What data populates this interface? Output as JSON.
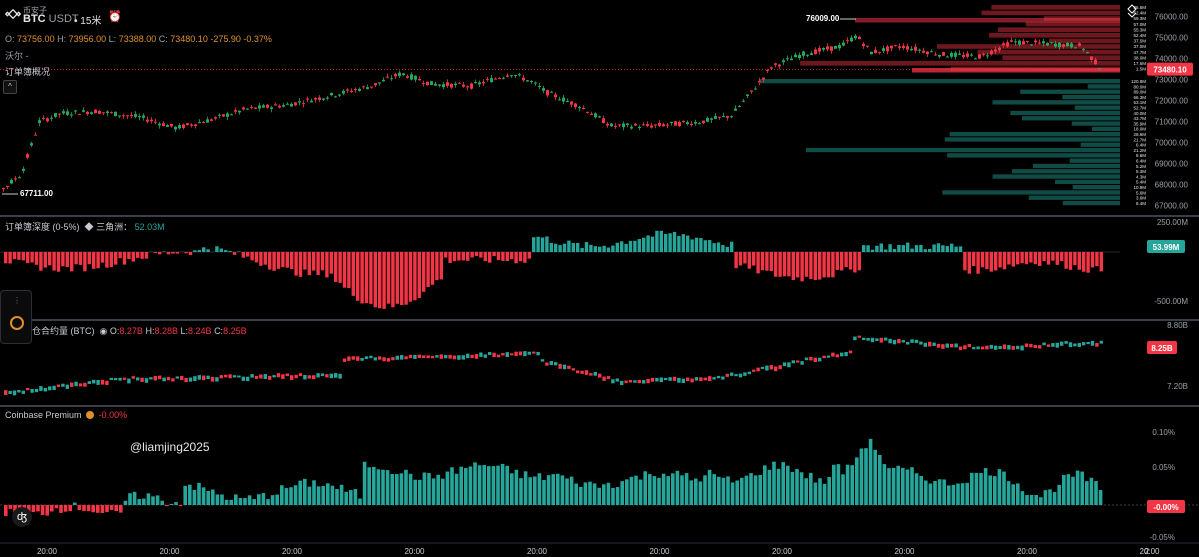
{
  "header": {
    "exchange": "币安子",
    "symbol": "BTC",
    "quote": "USDT",
    "timeframe": "• 15米",
    "alert_icon": "alarm-icon"
  },
  "ohlc": {
    "o_label": "O:",
    "o": "73756.00",
    "h_label": "H:",
    "h": "73956.00",
    "l_label": "L:",
    "l": "73388.00",
    "c_label": "C:",
    "c": "73480.10",
    "change": "-275.90",
    "change_pct": "-0.37%"
  },
  "overlays": {
    "sub1": "沃尔 -",
    "sub2": "订单簿概况",
    "collapse": "^"
  },
  "price_axis": {
    "ticks": [
      "76000.00",
      "75000.00",
      "74000.00",
      "73000.00",
      "72000.00",
      "71000.00",
      "70000.00",
      "69000.00",
      "68000.00",
      "67000.00"
    ],
    "current": "73480.10",
    "high_label": "76009.00",
    "low_label": "67711.00"
  },
  "orderbook": {
    "ask_labels": [
      "86.6M",
      "62.4M",
      "59.3M",
      "57.0M",
      "55.3M",
      "52.4M",
      "37.5M",
      "37.0M",
      "47.7M",
      "38.0M",
      "17.6M",
      "1.5M"
    ],
    "bid_labels": [
      "120.8M",
      "80.0M",
      "89.0M",
      "66.3M",
      "53.1M",
      "52.7M",
      "40.0M",
      "43.7M",
      "35.9M",
      "18.0M",
      "28.6M",
      "21.7M",
      "6.4M",
      "21.2M",
      "8.6M",
      "6.4M",
      "5.2M",
      "5.3M",
      "4.3M",
      "5.4M",
      "10.9M",
      "5.6M",
      "3.6M",
      "8.4M"
    ],
    "ask_color": "#f23645",
    "bid_color": "#26a69a"
  },
  "depth": {
    "name": "订单簿深度 (0-5%)",
    "sub_name": "三角洲：",
    "sub_value": "52.03M",
    "axis_ticks": [
      "250.00M",
      "0.00",
      "-500.00M"
    ],
    "current": "53.99M",
    "icon": "delta-icon"
  },
  "oi": {
    "name": "未来平仓合约量 (BTC)",
    "o_label": "O:",
    "o": "8.27B",
    "h_label": "H:",
    "h": "8.28B",
    "l_label": "L:",
    "l": "8.24B",
    "c_label": "C:",
    "c": "8.25B",
    "axis_ticks": [
      "8.80B",
      "7.20B"
    ],
    "current": "8.25B",
    "icon": "eye-icon"
  },
  "premium": {
    "name": "Coinbase Premium",
    "value": "-0.00%",
    "axis_ticks": [
      "0.10%",
      "0.05%",
      "0.00%",
      "-0.05%"
    ],
    "current": "-0.00%",
    "icon": "coin-icon"
  },
  "time_axis": {
    "labels": [
      "20:00",
      "20:00",
      "20:00",
      "20:00",
      "20:00",
      "20:00",
      "20:00",
      "20:00",
      "20:00",
      "20:00"
    ],
    "right_label": "2"
  },
  "watermark": "@liamjing2025",
  "colors": {
    "up": "#26a69a",
    "down": "#f23645",
    "accent": "#e0902a",
    "candle_up": "#22ab5c"
  }
}
